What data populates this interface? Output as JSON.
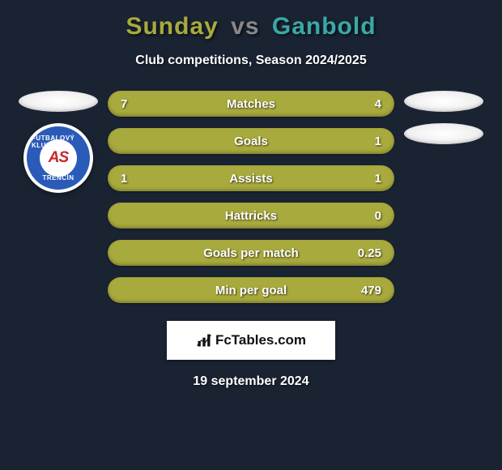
{
  "header": {
    "player1": "Sunday",
    "vs": "vs",
    "player2": "Ganbold",
    "player1_color": "#a8aa3d",
    "vs_color": "#888888",
    "player2_color": "#3aa8a8",
    "subtitle": "Club competitions, Season 2024/2025"
  },
  "club": {
    "badge_ring_color": "#2a5bb8",
    "arc_top": "FUTBALOVÝ KLUB",
    "arc_bottom": "TRENČÍN",
    "center_text": "AS",
    "center_text_color": "#c62828",
    "center_accent_color": "#2a5bb8"
  },
  "stats": {
    "bar_bg": "#a8aa3d",
    "bar_alt": "#9ea03a",
    "rows": [
      {
        "label": "Matches",
        "left": "7",
        "right": "4",
        "left_pct": 63.6,
        "right_pct": 36.4
      },
      {
        "label": "Goals",
        "left": "",
        "right": "1",
        "left_pct": 0,
        "right_pct": 100
      },
      {
        "label": "Assists",
        "left": "1",
        "right": "1",
        "left_pct": 50,
        "right_pct": 50
      },
      {
        "label": "Hattricks",
        "left": "",
        "right": "0",
        "left_pct": 0,
        "right_pct": 0
      },
      {
        "label": "Goals per match",
        "left": "",
        "right": "0.25",
        "left_pct": 0,
        "right_pct": 100
      },
      {
        "label": "Min per goal",
        "left": "",
        "right": "479",
        "left_pct": 0,
        "right_pct": 100
      }
    ]
  },
  "footer": {
    "brand": "FcTables.com",
    "date": "19 september 2024"
  }
}
